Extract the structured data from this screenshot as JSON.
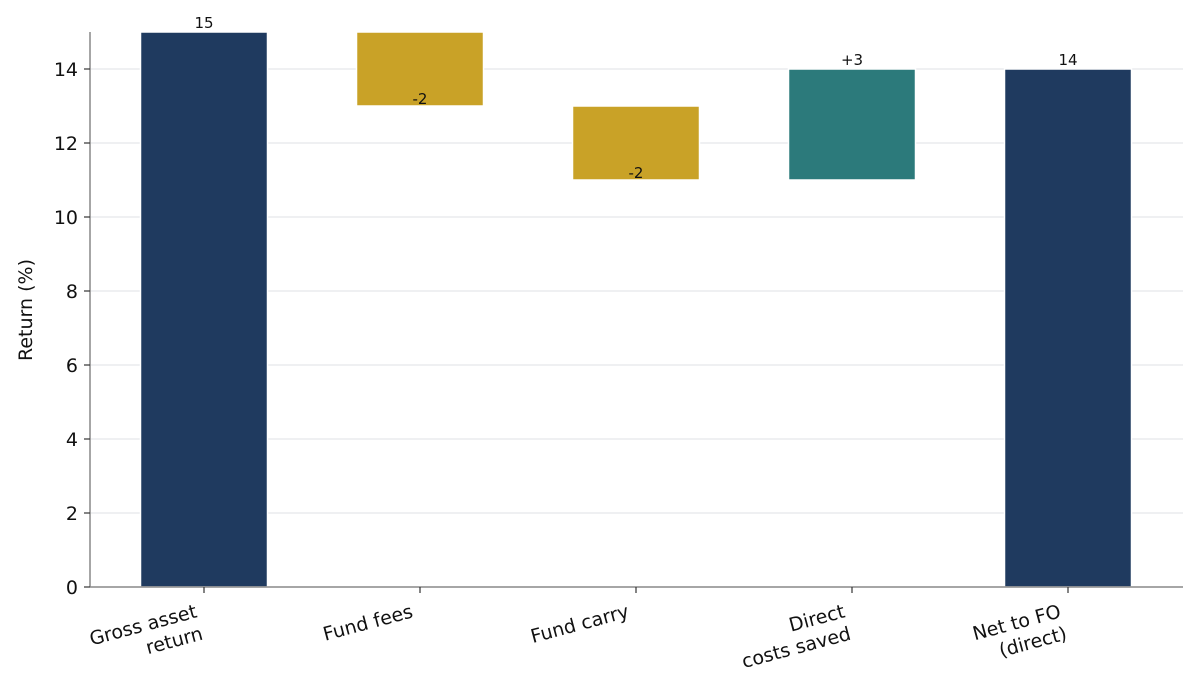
{
  "chart_data": {
    "type": "waterfall",
    "categories": [
      "Gross asset\nreturn",
      "Fund fees",
      "Fund carry",
      "Direct\ncosts saved",
      "Net to FO\n(direct)"
    ],
    "bars": [
      {
        "kind": "total",
        "start": 0,
        "end": 15,
        "label": "15",
        "color": "#1f3a5f"
      },
      {
        "kind": "decrease",
        "start": 15,
        "end": 13,
        "label": "-2",
        "color": "#c9a227"
      },
      {
        "kind": "decrease",
        "start": 13,
        "end": 11,
        "label": "-2",
        "color": "#c9a227"
      },
      {
        "kind": "increase",
        "start": 11,
        "end": 14,
        "label": "+3",
        "color": "#2c7a7b"
      },
      {
        "kind": "total",
        "start": 0,
        "end": 14,
        "label": "14",
        "color": "#1f3a5f"
      }
    ],
    "title": "",
    "xlabel": "",
    "ylabel": "Return (%)",
    "ylim": [
      0,
      15
    ],
    "yticks": [
      0,
      2,
      4,
      6,
      8,
      10,
      12,
      14
    ],
    "grid": "horizontal",
    "gridColor": "#e5e7eb"
  }
}
